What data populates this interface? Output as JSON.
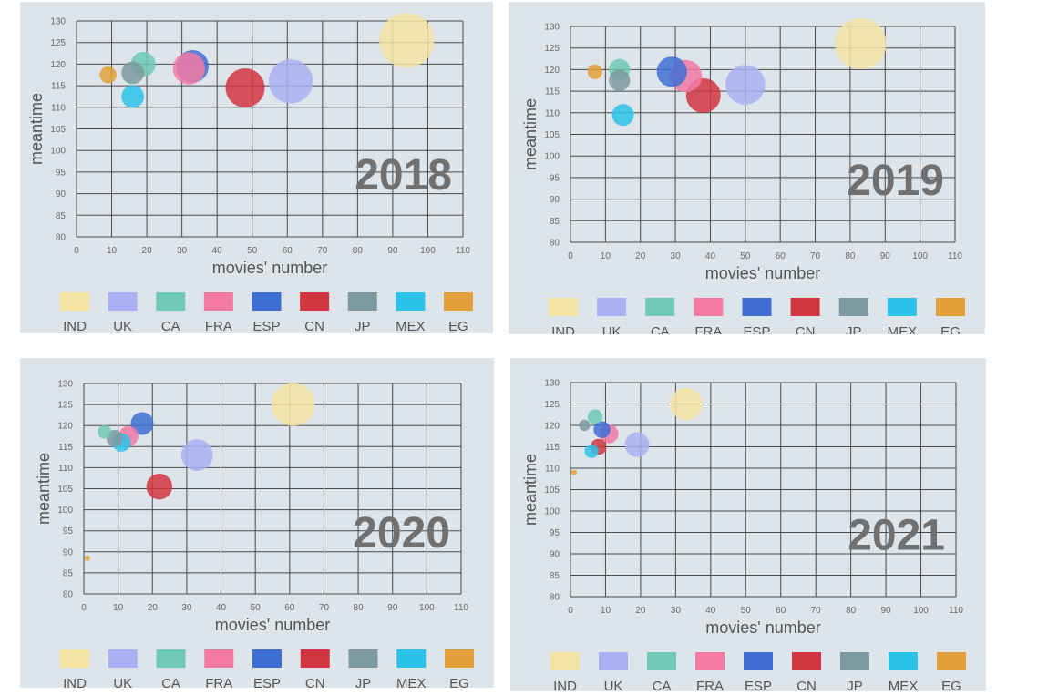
{
  "colors": {
    "IND": "#f5e3a3",
    "UK": "#aab0f3",
    "CA": "#6fc9b4",
    "FRA": "#f27aa3",
    "ESP": "#3f6fd4",
    "CN": "#d1353f",
    "JP": "#7d9aa0",
    "MEX": "#2dc2ea",
    "EG": "#e4a03a"
  },
  "legend": [
    "IND",
    "UK",
    "CA",
    "FRA",
    "ESP",
    "CN",
    "JP",
    "MEX",
    "EG"
  ],
  "chart_data": [
    {
      "type": "scatter",
      "title": "2018",
      "xlabel": "movies' number",
      "ylabel": "meantime",
      "xlim": [
        0,
        110
      ],
      "ylim": [
        80,
        130
      ],
      "xticks": [
        0,
        10,
        20,
        30,
        40,
        50,
        60,
        70,
        80,
        90,
        100,
        110
      ],
      "yticks": [
        80,
        85,
        90,
        95,
        100,
        105,
        110,
        115,
        120,
        125,
        130
      ],
      "points": [
        {
          "country": "IND",
          "x": 94,
          "y": 125.5,
          "size": 94
        },
        {
          "country": "UK",
          "x": 61,
          "y": 116,
          "size": 61
        },
        {
          "country": "CA",
          "x": 19,
          "y": 120,
          "size": 19
        },
        {
          "country": "FRA",
          "x": 32,
          "y": 119,
          "size": 32
        },
        {
          "country": "ESP",
          "x": 33,
          "y": 119.5,
          "size": 33
        },
        {
          "country": "CN",
          "x": 48,
          "y": 114.5,
          "size": 48
        },
        {
          "country": "JP",
          "x": 16,
          "y": 118,
          "size": 16
        },
        {
          "country": "MEX",
          "x": 16,
          "y": 112.5,
          "size": 16
        },
        {
          "country": "EG",
          "x": 9,
          "y": 117.5,
          "size": 9
        }
      ]
    },
    {
      "type": "scatter",
      "title": "2019",
      "xlabel": "movies' number",
      "ylabel": "meantime",
      "xlim": [
        0,
        110
      ],
      "ylim": [
        80,
        130
      ],
      "xticks": [
        0,
        10,
        20,
        30,
        40,
        50,
        60,
        70,
        80,
        90,
        100,
        110
      ],
      "yticks": [
        80,
        85,
        90,
        95,
        100,
        105,
        110,
        115,
        120,
        125,
        130
      ],
      "points": [
        {
          "country": "IND",
          "x": 83,
          "y": 126,
          "size": 83
        },
        {
          "country": "UK",
          "x": 50,
          "y": 116.5,
          "size": 50
        },
        {
          "country": "CA",
          "x": 14,
          "y": 120,
          "size": 14
        },
        {
          "country": "FRA",
          "x": 33,
          "y": 118.5,
          "size": 33
        },
        {
          "country": "ESP",
          "x": 29,
          "y": 119.5,
          "size": 29
        },
        {
          "country": "CN",
          "x": 38,
          "y": 114,
          "size": 38
        },
        {
          "country": "JP",
          "x": 14,
          "y": 117.5,
          "size": 14
        },
        {
          "country": "MEX",
          "x": 15,
          "y": 109.5,
          "size": 15
        },
        {
          "country": "EG",
          "x": 7,
          "y": 119.5,
          "size": 7
        }
      ]
    },
    {
      "type": "scatter",
      "title": "2020",
      "xlabel": "movies' number",
      "ylabel": "meantime",
      "xlim": [
        0,
        110
      ],
      "ylim": [
        80,
        130
      ],
      "xticks": [
        0,
        10,
        20,
        30,
        40,
        50,
        60,
        70,
        80,
        90,
        100,
        110
      ],
      "yticks": [
        80,
        85,
        90,
        95,
        100,
        105,
        110,
        115,
        120,
        125,
        130
      ],
      "points": [
        {
          "country": "IND",
          "x": 61,
          "y": 125,
          "size": 61
        },
        {
          "country": "UK",
          "x": 33,
          "y": 113,
          "size": 33
        },
        {
          "country": "CA",
          "x": 6,
          "y": 118.5,
          "size": 6
        },
        {
          "country": "FRA",
          "x": 13,
          "y": 117.5,
          "size": 13
        },
        {
          "country": "ESP",
          "x": 17,
          "y": 120.5,
          "size": 17
        },
        {
          "country": "CN",
          "x": 22,
          "y": 105.5,
          "size": 22
        },
        {
          "country": "JP",
          "x": 9,
          "y": 117,
          "size": 9
        },
        {
          "country": "MEX",
          "x": 11,
          "y": 116,
          "size": 11
        },
        {
          "country": "EG",
          "x": 1,
          "y": 88.5,
          "size": 1
        }
      ]
    },
    {
      "type": "scatter",
      "title": "2021",
      "xlabel": "movies' number",
      "ylabel": "meantime",
      "xlim": [
        0,
        110
      ],
      "ylim": [
        80,
        130
      ],
      "xticks": [
        0,
        10,
        20,
        30,
        40,
        50,
        60,
        70,
        80,
        90,
        100,
        110
      ],
      "yticks": [
        80,
        85,
        90,
        95,
        100,
        105,
        110,
        115,
        120,
        125,
        130
      ],
      "points": [
        {
          "country": "IND",
          "x": 33,
          "y": 125,
          "size": 33
        },
        {
          "country": "UK",
          "x": 19,
          "y": 115.5,
          "size": 19
        },
        {
          "country": "CA",
          "x": 7,
          "y": 122,
          "size": 7
        },
        {
          "country": "FRA",
          "x": 11,
          "y": 118,
          "size": 11
        },
        {
          "country": "ESP",
          "x": 9,
          "y": 119,
          "size": 9
        },
        {
          "country": "CN",
          "x": 8,
          "y": 115,
          "size": 8
        },
        {
          "country": "JP",
          "x": 4,
          "y": 120,
          "size": 4
        },
        {
          "country": "MEX",
          "x": 6,
          "y": 114,
          "size": 6
        },
        {
          "country": "EG",
          "x": 1,
          "y": 109,
          "size": 1
        }
      ]
    }
  ]
}
